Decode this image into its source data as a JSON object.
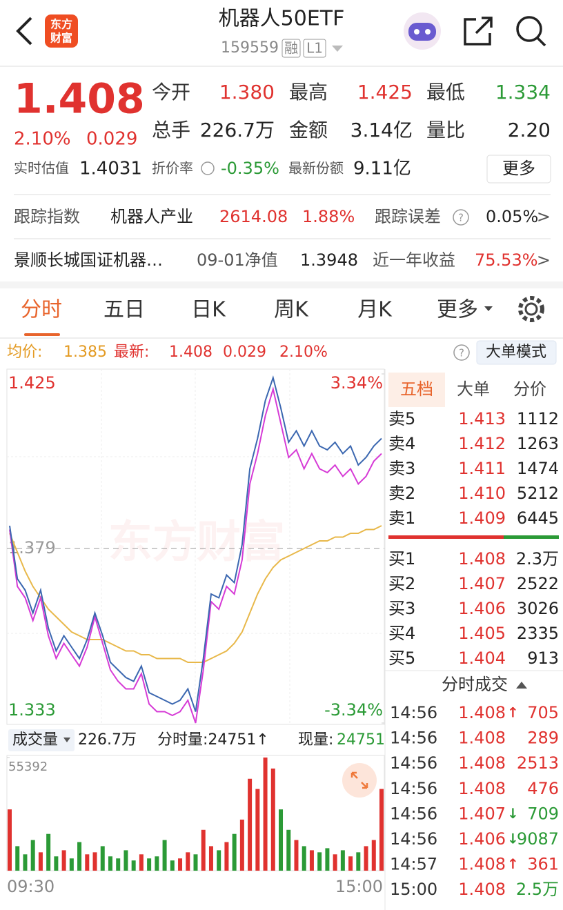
{
  "header": {
    "title": "机器人50ETF",
    "code": "159559",
    "tags": [
      "融",
      "L1"
    ],
    "logo": [
      "东方",
      "财富"
    ]
  },
  "quote": {
    "price": "1.408",
    "change_pct": "2.10%",
    "change": "0.029",
    "stats": [
      [
        {
          "label": "今开",
          "value": "1.380",
          "color": "#e0322f"
        },
        {
          "label": "最高",
          "value": "1.425",
          "color": "#e0322f"
        },
        {
          "label": "最低",
          "value": "1.334",
          "color": "#2b9a36"
        }
      ],
      [
        {
          "label": "总手",
          "value": "226.7万",
          "color": "#222222"
        },
        {
          "label": "金额",
          "value": "3.14亿",
          "color": "#222222"
        },
        {
          "label": "量比",
          "value": "2.20",
          "color": "#222222"
        }
      ]
    ],
    "estimate_label": "实时估值",
    "estimate": "1.4031",
    "discount_label": "折价率",
    "discount": "-0.35%",
    "shares_label": "最新份额",
    "shares": "9.11亿",
    "more": "更多"
  },
  "tracking": {
    "label": "跟踪指数",
    "index": "机器人产业",
    "index_value": "2614.08",
    "index_pct": "1.88%",
    "error_label": "跟踪误差",
    "error": "0.05%",
    "arrow": ">"
  },
  "fund": {
    "name": "景顺长城国证机器…",
    "nav_label": "09-01净值",
    "nav": "1.3948",
    "return_label": "近一年收益",
    "return": "75.53%",
    "arrow": ">"
  },
  "tabs": [
    "分时",
    "五日",
    "日K",
    "周K",
    "月K",
    "更多"
  ],
  "chart_info": {
    "avg_label": "均价:",
    "avg": "1.385",
    "last_label": "最新:",
    "last": "1.408",
    "change": "0.029",
    "pct": "2.10%",
    "mode": "大单模式"
  },
  "volume_info": {
    "selector": "成交量",
    "total": "226.7万",
    "minute": "分时量:24751↑",
    "now_label": "现量:",
    "now": "24751"
  },
  "chart_data": [
    {
      "type": "line",
      "watermark": "东方财富",
      "ylim": [
        1.333,
        1.425
      ],
      "yticks": [
        1.333,
        1.379,
        1.425
      ],
      "y2lim": [
        -3.34,
        3.34
      ],
      "y2ticks": [
        {
          "value": -3.34,
          "label": "-3.34%"
        },
        {
          "value": 3.34,
          "label": "3.34%"
        }
      ],
      "series": [
        {
          "color": "#3b67b0",
          "values": [
            1.385,
            1.371,
            1.368,
            1.362,
            1.368,
            1.358,
            1.352,
            1.356,
            1.353,
            1.35,
            1.355,
            1.362,
            1.356,
            1.349,
            1.347,
            1.345,
            1.344,
            1.348,
            1.341,
            1.34,
            1.339,
            1.338,
            1.339,
            1.342,
            1.336,
            1.35,
            1.367,
            1.366,
            1.372,
            1.37,
            1.38,
            1.4,
            1.408,
            1.418,
            1.424,
            1.416,
            1.407,
            1.41,
            1.406,
            1.41,
            1.406,
            1.405,
            1.407,
            1.404,
            1.406,
            1.401,
            1.403,
            1.406,
            1.408
          ]
        },
        {
          "color": "#d63bd6",
          "values": [
            1.384,
            1.369,
            1.366,
            1.36,
            1.366,
            1.356,
            1.35,
            1.354,
            1.351,
            1.348,
            1.353,
            1.361,
            1.354,
            1.347,
            1.344,
            1.342,
            1.342,
            1.346,
            1.338,
            1.336,
            1.336,
            1.335,
            1.336,
            1.339,
            1.333,
            1.347,
            1.365,
            1.363,
            1.369,
            1.367,
            1.376,
            1.396,
            1.404,
            1.414,
            1.421,
            1.412,
            1.403,
            1.405,
            1.4,
            1.404,
            1.4,
            1.399,
            1.401,
            1.398,
            1.4,
            1.396,
            1.398,
            1.402,
            1.404
          ]
        },
        {
          "color": "#e8b84a",
          "values": [
            1.383,
            1.378,
            1.373,
            1.369,
            1.366,
            1.363,
            1.361,
            1.359,
            1.357,
            1.356,
            1.355,
            1.355,
            1.355,
            1.354,
            1.353,
            1.352,
            1.352,
            1.351,
            1.351,
            1.35,
            1.35,
            1.35,
            1.35,
            1.349,
            1.349,
            1.349,
            1.35,
            1.351,
            1.352,
            1.354,
            1.357,
            1.362,
            1.367,
            1.371,
            1.374,
            1.376,
            1.377,
            1.378,
            1.379,
            1.38,
            1.381,
            1.381,
            1.382,
            1.382,
            1.383,
            1.383,
            1.384,
            1.384,
            1.385
          ]
        }
      ]
    },
    {
      "type": "bar",
      "categories": [
        "09:30",
        null,
        null,
        null,
        null,
        null,
        null,
        null,
        null,
        null,
        null,
        null,
        null,
        null,
        null,
        null,
        null,
        null,
        null,
        null,
        null,
        null,
        null,
        null,
        null,
        null,
        null,
        null,
        null,
        null,
        null,
        null,
        null,
        null,
        null,
        null,
        null,
        null,
        null,
        null,
        null,
        null,
        null,
        null,
        null,
        null,
        null,
        null,
        "15:00"
      ],
      "ylim": [
        0,
        55392
      ],
      "yticks": [
        55392
      ],
      "up_color": "#e0322f",
      "down_color": "#2b9a36",
      "values": [
        30000,
        12000,
        8000,
        15000,
        9000,
        18000,
        7000,
        10000,
        6000,
        14000,
        8000,
        9000,
        12000,
        7000,
        6000,
        10000,
        5000,
        8000,
        6000,
        7000,
        15000,
        5000,
        6000,
        9000,
        8000,
        20000,
        12000,
        10000,
        14000,
        18000,
        25000,
        45000,
        40000,
        55392,
        50000,
        30000,
        20000,
        15000,
        12000,
        10000,
        9000,
        11000,
        8000,
        10000,
        7000,
        9000,
        12000,
        15000,
        40000
      ]
    }
  ],
  "order_book": {
    "tabs": [
      "五档",
      "大单",
      "分价"
    ],
    "asks": [
      {
        "label": "卖5",
        "price": "1.413",
        "volume": "1112"
      },
      {
        "label": "卖4",
        "price": "1.412",
        "volume": "1263"
      },
      {
        "label": "卖3",
        "price": "1.411",
        "volume": "1474"
      },
      {
        "label": "卖2",
        "price": "1.410",
        "volume": "5212"
      },
      {
        "label": "卖1",
        "price": "1.409",
        "volume": "6445"
      }
    ],
    "bids": [
      {
        "label": "买1",
        "price": "1.408",
        "volume": "2.3万"
      },
      {
        "label": "买2",
        "price": "1.407",
        "volume": "2522"
      },
      {
        "label": "买3",
        "price": "1.406",
        "volume": "3026"
      },
      {
        "label": "买4",
        "price": "1.405",
        "volume": "2335"
      },
      {
        "label": "买5",
        "price": "1.404",
        "volume": "913"
      }
    ]
  },
  "trades": {
    "title": "分时成交",
    "rows": [
      {
        "time": "14:56",
        "price": "1.408",
        "dir": "↑",
        "volume": "705",
        "color": "#e0322f"
      },
      {
        "time": "14:56",
        "price": "1.408",
        "volume": "289",
        "color": "#e0322f"
      },
      {
        "time": "14:56",
        "price": "1.408",
        "volume": "2513",
        "color": "#e0322f"
      },
      {
        "time": "14:56",
        "price": "1.408",
        "volume": "476",
        "color": "#e0322f"
      },
      {
        "time": "14:56",
        "price": "1.407",
        "dir": "↓",
        "volume": "709",
        "color": "#2b9a36"
      },
      {
        "time": "14:56",
        "price": "1.406",
        "dir": "↓",
        "volume": "9087",
        "color": "#2b9a36"
      },
      {
        "time": "14:57",
        "price": "1.408",
        "dir": "↑",
        "volume": "361",
        "color": "#e0322f"
      },
      {
        "time": "15:00",
        "price": "1.408",
        "volume": "2.5万",
        "color": "#2b9a36"
      }
    ]
  }
}
